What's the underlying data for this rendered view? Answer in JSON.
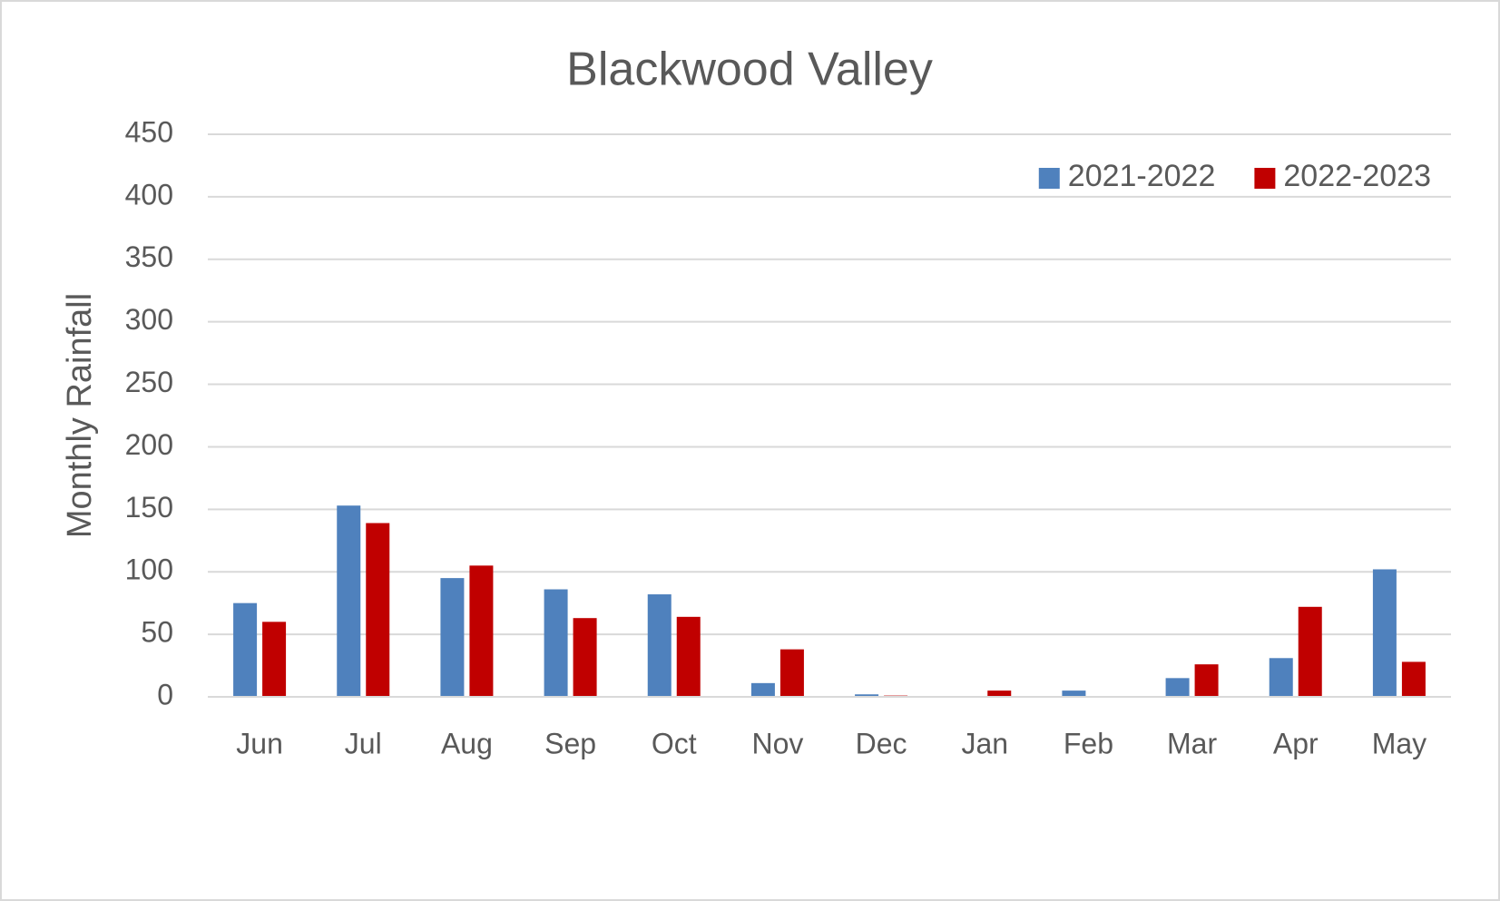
{
  "chart_data": {
    "type": "bar",
    "title": "Blackwood Valley",
    "y_label": "Monthly Rainfall",
    "categories": [
      "Jun",
      "Jul",
      "Aug",
      "Sep",
      "Oct",
      "Nov",
      "Dec",
      "Jan",
      "Feb",
      "Mar",
      "Apr",
      "May"
    ],
    "series": [
      {
        "name": "2021-2022",
        "color": "#4f81bd",
        "values": [
          75,
          153,
          95,
          86,
          82,
          11,
          2,
          0,
          5,
          15,
          31,
          102
        ]
      },
      {
        "name": "2022-2023",
        "color": "#c00000",
        "values": [
          60,
          139,
          105,
          63,
          64,
          38,
          1,
          5,
          0,
          26,
          72,
          28
        ]
      }
    ],
    "ylim": [
      0,
      450
    ],
    "yticks": [
      0,
      50,
      100,
      150,
      200,
      250,
      300,
      350,
      400,
      450
    ],
    "grid": true,
    "legend": "top-right"
  }
}
